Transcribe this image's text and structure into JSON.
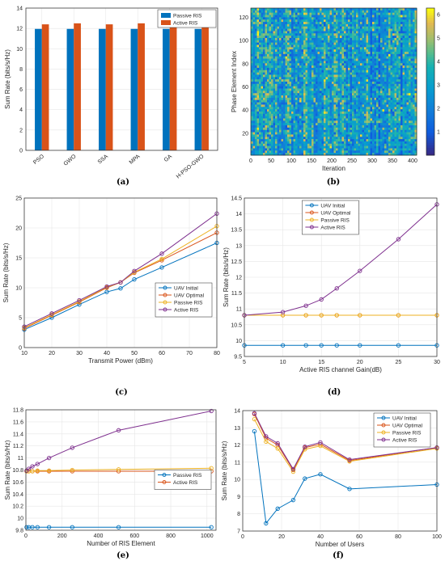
{
  "colors": {
    "blue": "#0072BD",
    "orange": "#D95319",
    "yellow": "#EDB120",
    "purple": "#7E2F8E"
  },
  "chart_data": [
    {
      "id": "a",
      "type": "bar",
      "caption": "(a)",
      "categories": [
        "PSO",
        "GWO",
        "SSA",
        "MPA",
        "GA",
        "H-PSO-GWO"
      ],
      "series": [
        {
          "name": "Passive RIS",
          "color": "#0072BD",
          "values": [
            11.95,
            11.95,
            11.95,
            11.95,
            11.95,
            11.95
          ]
        },
        {
          "name": "Active RIS",
          "color": "#D95319",
          "values": [
            12.4,
            12.5,
            12.4,
            12.5,
            12.4,
            12.6
          ]
        }
      ],
      "xlabel": "",
      "ylabel": "Sum Rate (bits/s/Hz)",
      "ylim": [
        0,
        14
      ],
      "yticks": [
        0,
        2,
        4,
        6,
        8,
        10,
        12,
        14
      ],
      "grid": true,
      "legend": "top-right"
    },
    {
      "id": "b",
      "type": "heatmap",
      "caption": "(b)",
      "xlabel": "Iteration",
      "ylabel": "Phase Element Index",
      "xlim": [
        0,
        410
      ],
      "ylim": [
        1,
        128
      ],
      "xticks": [
        0,
        50,
        100,
        150,
        200,
        250,
        300,
        350,
        400
      ],
      "yticks": [
        20,
        40,
        60,
        80,
        100,
        120
      ],
      "colorbar_ticks": [
        1,
        2,
        3,
        4,
        5,
        6
      ],
      "colorbar_range": [
        0,
        6.28
      ]
    },
    {
      "id": "c",
      "type": "line",
      "caption": "(c)",
      "x": [
        10,
        20,
        30,
        40,
        45,
        50,
        60,
        80
      ],
      "series": [
        {
          "name": "UAV Initial",
          "color": "#0072BD",
          "values": [
            3.0,
            5.0,
            7.2,
            9.3,
            9.9,
            11.4,
            13.4,
            17.5
          ]
        },
        {
          "name": "UAV Optimal",
          "color": "#D95319",
          "values": [
            3.2,
            5.4,
            7.6,
            10.0,
            10.9,
            12.5,
            14.6,
            19.2
          ]
        },
        {
          "name": "Passive RIS",
          "color": "#EDB120",
          "values": [
            3.3,
            5.5,
            7.7,
            10.1,
            10.9,
            12.6,
            14.8,
            20.3
          ]
        },
        {
          "name": "Active RIS",
          "color": "#7E2F8E",
          "values": [
            3.5,
            5.7,
            7.9,
            10.2,
            10.9,
            12.8,
            15.7,
            22.4
          ]
        }
      ],
      "xlabel": "Transmit Power (dBm)",
      "ylabel": "Sum Rate (bits/s/Hz)",
      "xlim": [
        10,
        80
      ],
      "ylim": [
        0,
        25
      ],
      "xticks": [
        10,
        20,
        30,
        40,
        50,
        60,
        70,
        80
      ],
      "yticks": [
        0,
        5,
        10,
        15,
        20,
        25
      ],
      "grid": true,
      "legend": "lower-right"
    },
    {
      "id": "d",
      "type": "line",
      "caption": "(d)",
      "x": [
        5,
        10,
        13,
        15,
        17,
        20,
        25,
        30
      ],
      "series": [
        {
          "name": "UAV Initial",
          "color": "#0072BD",
          "values": [
            9.85,
            9.85,
            9.85,
            9.85,
            9.85,
            9.85,
            9.85,
            9.85
          ]
        },
        {
          "name": "UAV Optimal",
          "color": "#D95319",
          "values": [
            10.8,
            10.8,
            10.8,
            10.8,
            10.8,
            10.8,
            10.8,
            10.8
          ]
        },
        {
          "name": "Passive RIS",
          "color": "#EDB120",
          "values": [
            10.8,
            10.8,
            10.8,
            10.8,
            10.8,
            10.8,
            10.8,
            10.8
          ]
        },
        {
          "name": "Active RIS",
          "color": "#7E2F8E",
          "values": [
            10.8,
            10.9,
            11.1,
            11.3,
            11.65,
            12.2,
            13.2,
            14.3
          ]
        }
      ],
      "xlabel": "Active RIS channel Gain(dB)",
      "ylabel": "Sum Rate (bits/s/Hz)",
      "xlim": [
        5,
        30
      ],
      "ylim": [
        9.5,
        14.5
      ],
      "xticks": [
        5,
        10,
        15,
        20,
        25,
        30
      ],
      "yticks": [
        9.5,
        10,
        10.5,
        11,
        11.5,
        12,
        12.5,
        13,
        13.5,
        14,
        14.5
      ],
      "grid": true,
      "legend": "top-left"
    },
    {
      "id": "e",
      "type": "line",
      "caption": "(e)",
      "x": [
        4,
        16,
        36,
        64,
        128,
        256,
        512,
        1024
      ],
      "series": [
        {
          "name": "Passive RIS",
          "color": "#0072BD",
          "values": [
            9.85,
            9.85,
            9.85,
            9.85,
            9.85,
            9.85,
            9.85,
            9.85
          ],
          "extra": {
            "x": [
              1024
            ],
            "values": [
              10.82
            ],
            "color": "#EDB120"
          }
        },
        {
          "name": "Active RIS",
          "color": "#D95319",
          "values": [
            10.78,
            10.78,
            10.78,
            10.78,
            10.78,
            10.78,
            10.78,
            10.78
          ]
        }
      ],
      "extra_series": [
        {
          "name": "",
          "color": "#EDB120",
          "values": [
            10.78,
            10.78,
            10.78,
            10.79,
            10.79,
            10.8,
            10.81,
            10.83
          ]
        },
        {
          "name": "",
          "color": "#7E2F8E",
          "values": [
            10.79,
            10.82,
            10.86,
            10.9,
            11.0,
            11.17,
            11.46,
            11.78
          ]
        }
      ],
      "xlabel": "Number of RIS Element",
      "ylabel": "Sum Rate (bits/s/Hz)",
      "xlim": [
        0,
        1050
      ],
      "ylim": [
        9.8,
        11.8
      ],
      "xticks": [
        0,
        200,
        400,
        600,
        800,
        1000
      ],
      "yticks": [
        9.8,
        10,
        10.2,
        10.4,
        10.6,
        10.8,
        11,
        11.2,
        11.4,
        11.6,
        11.8
      ],
      "grid": true,
      "legend": "middle-right"
    },
    {
      "id": "f",
      "type": "line",
      "caption": "(f)",
      "x": [
        6,
        12,
        18,
        26,
        32,
        40,
        55,
        100
      ],
      "series": [
        {
          "name": "UAV Initial",
          "color": "#0072BD",
          "values": [
            12.8,
            7.45,
            8.3,
            8.8,
            10.05,
            10.3,
            9.45,
            9.7
          ]
        },
        {
          "name": "UAV Optimal",
          "color": "#D95319",
          "values": [
            13.8,
            12.4,
            12.0,
            10.55,
            11.85,
            12.05,
            11.1,
            11.85
          ]
        },
        {
          "name": "Passive RIS",
          "color": "#EDB120",
          "values": [
            13.5,
            12.2,
            11.8,
            10.45,
            11.75,
            11.95,
            11.05,
            11.8
          ]
        },
        {
          "name": "Active RIS",
          "color": "#7E2F8E",
          "values": [
            13.85,
            12.5,
            12.1,
            10.6,
            11.9,
            12.15,
            11.15,
            11.85
          ]
        }
      ],
      "xlabel": "Number of Users",
      "ylabel": "Sum Rate (bits/s/Hz)",
      "xlim": [
        0,
        100
      ],
      "ylim": [
        7,
        14
      ],
      "xticks": [
        0,
        20,
        40,
        60,
        80,
        100
      ],
      "yticks": [
        7,
        8,
        9,
        10,
        11,
        12,
        13,
        14
      ],
      "grid": true,
      "legend": "top-right"
    }
  ]
}
